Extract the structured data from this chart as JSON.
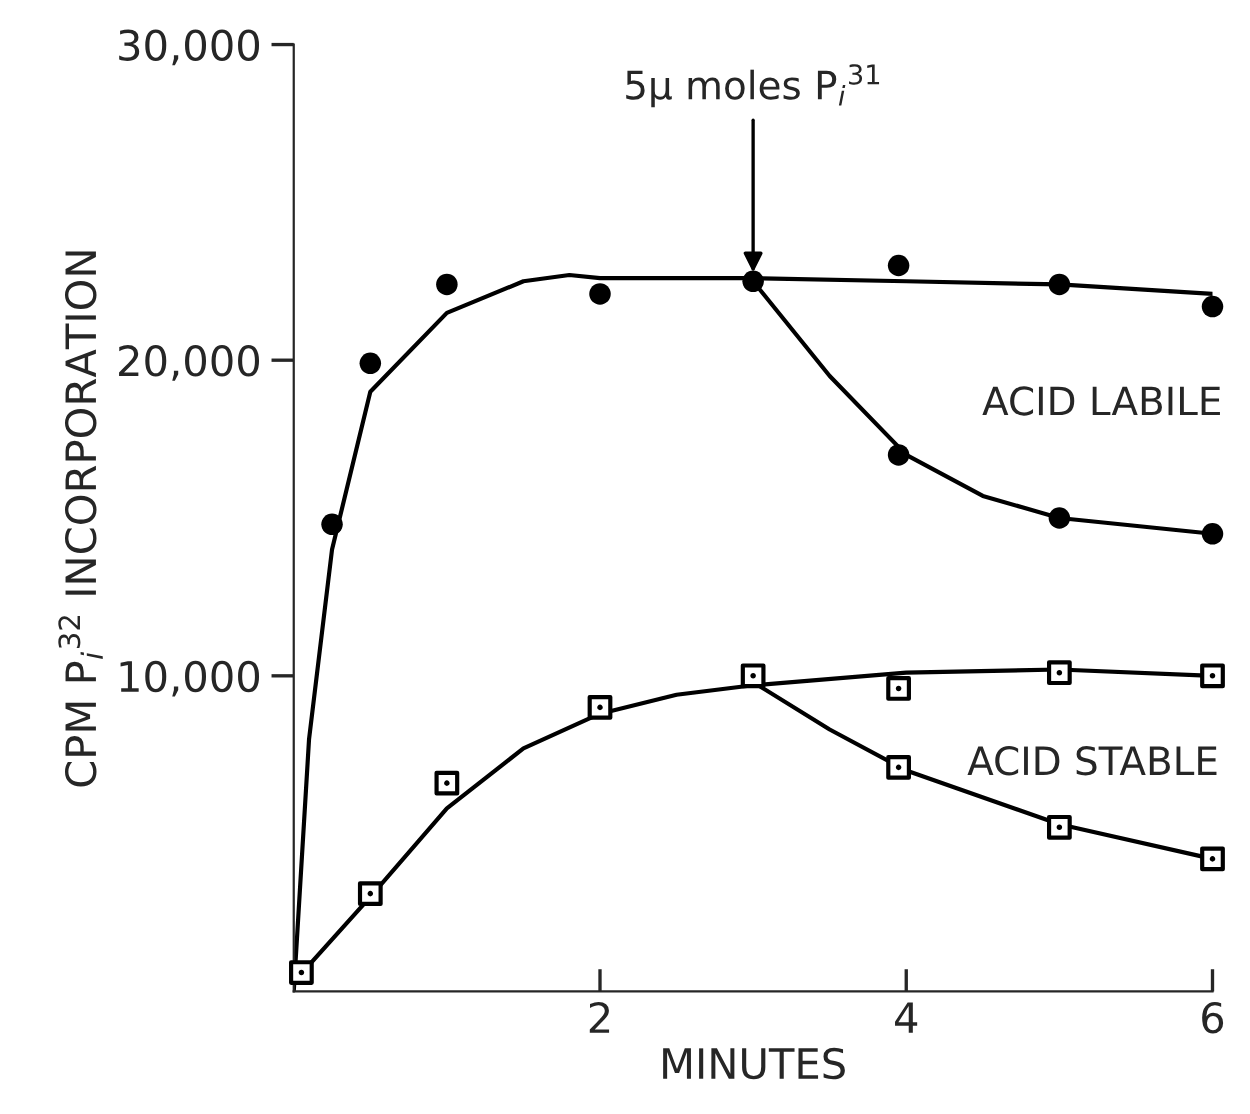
{
  "chart_data": {
    "type": "scatter",
    "xlabel": "MINUTES",
    "ylabel": "CPM P$_{i}$$^{32}$ INCORPORATION",
    "xlim": [
      0,
      6
    ],
    "ylim": [
      0,
      30000
    ],
    "xticks": [
      2,
      4,
      6
    ],
    "yticks": [
      {
        "value": 10000,
        "label": "10,000"
      },
      {
        "value": 20000,
        "label": "20,000"
      },
      {
        "value": 30000,
        "label": "30,000"
      }
    ],
    "grid": false,
    "legend": false,
    "series": [
      {
        "marker": "circle",
        "color": "#000000",
        "x": [
          0.25,
          0.5,
          1,
          2,
          3,
          3.95,
          5,
          6,
          3.95,
          5,
          6
        ],
        "values": [
          14800,
          19900,
          22400,
          22100,
          22500,
          23000,
          22400,
          21700,
          17000,
          15000,
          14500
        ]
      },
      {
        "marker": "square",
        "color": "#000000",
        "x": [
          0.05,
          0.5,
          1,
          2,
          3,
          3.95,
          5,
          6,
          3.95,
          5,
          6
        ],
        "values": [
          600,
          3100,
          6600,
          9000,
          10000,
          9600,
          10100,
          10000,
          7100,
          5200,
          4200
        ]
      },
      {
        "type": "line",
        "line_style": "solid",
        "color": "#000000",
        "x": [
          0,
          0.1,
          0.25,
          0.5,
          1,
          1.5,
          1.8,
          2,
          3,
          4,
          5,
          6
        ],
        "values": [
          0,
          8000,
          14000,
          19000,
          21500,
          22500,
          22700,
          22600,
          22600,
          22500,
          22400,
          22100
        ]
      },
      {
        "type": "line",
        "line_style": "solid",
        "color": "#000000",
        "x": [
          3,
          3.5,
          4,
          4.5,
          5,
          6
        ],
        "values": [
          22500,
          19500,
          17000,
          15700,
          15000,
          14500
        ]
      },
      {
        "type": "line",
        "line_style": "solid",
        "color": "#000000",
        "x": [
          0,
          0.5,
          1,
          1.5,
          2,
          2.5,
          3,
          4,
          5,
          6
        ],
        "values": [
          300,
          3000,
          5800,
          7700,
          8800,
          9400,
          9700,
          10100,
          10200,
          10000
        ]
      },
      {
        "type": "line",
        "line_style": "solid",
        "color": "#000000",
        "x": [
          3,
          3.5,
          4,
          5,
          6
        ],
        "values": [
          9800,
          8300,
          7000,
          5300,
          4200
        ]
      }
    ],
    "annotations": [
      {
        "text": "5μ moles P$_{i}$$^{31}$",
        "x": 3,
        "y": 22600
      },
      "ACID LABILE",
      "ACID STABLE"
    ]
  }
}
